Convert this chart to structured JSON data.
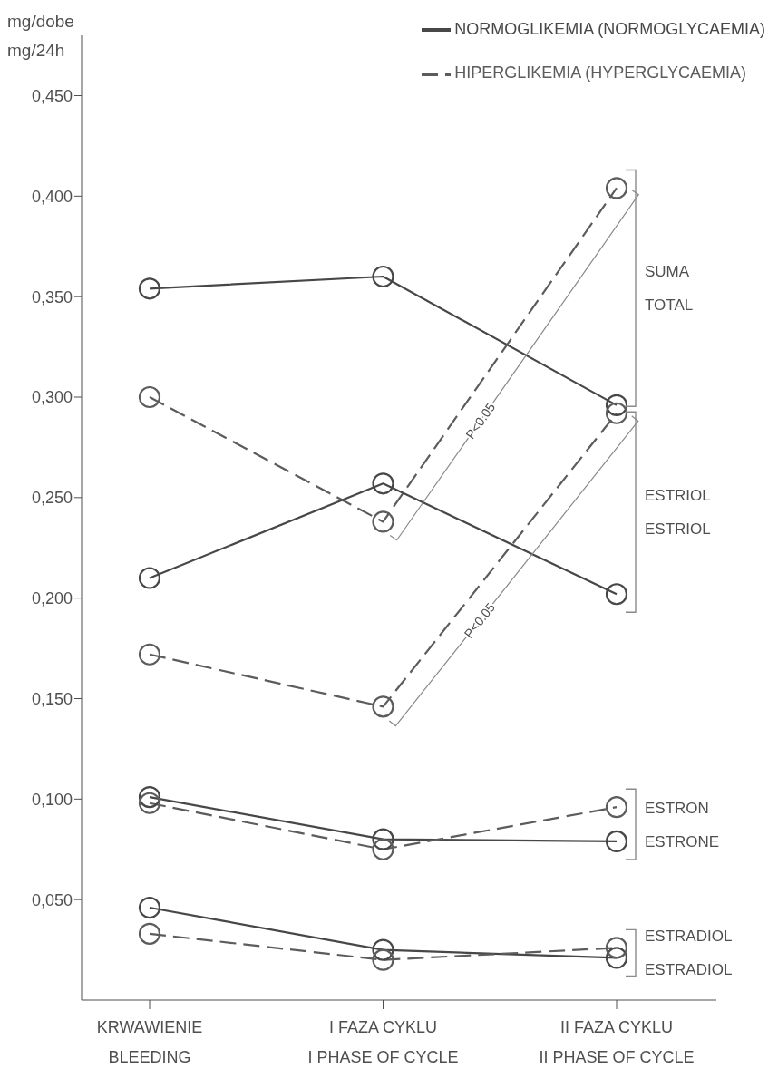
{
  "chart_data": {
    "type": "line",
    "categories": [
      "KRWAWIENIE\nBLEEDING",
      "I FAZA CYKLU\nI PHASE OF CYCLE",
      "II FAZA CYKLU\nII PHASE OF CYCLE"
    ],
    "ylabel": "mg/dobe\nmg/24h",
    "ylim": [
      0,
      0.48
    ],
    "yticks": [
      {
        "value": 0.05,
        "label": "0,050"
      },
      {
        "value": 0.1,
        "label": "0,100"
      },
      {
        "value": 0.15,
        "label": "0,150"
      },
      {
        "value": 0.2,
        "label": "0,200"
      },
      {
        "value": 0.25,
        "label": "0,250"
      },
      {
        "value": 0.3,
        "label": "0,300"
      },
      {
        "value": 0.35,
        "label": "0,350"
      },
      {
        "value": 0.4,
        "label": "0,400"
      },
      {
        "value": 0.45,
        "label": "0,450"
      }
    ],
    "series": [
      {
        "name": "NORMOGLIKEMIA (NORMOGLYCAEMIA)",
        "color": "#474747",
        "line_style": "solid",
        "values": [
          0.354,
          0.36,
          0.296
        ]
      },
      {
        "name": "HIPERGLIKEMIA (HYPERGLYCAEMIA)",
        "color": "#5c5c5c",
        "line_style": "dashed",
        "values": [
          0.3,
          0.238,
          0.404
        ]
      },
      {
        "color": "#474747",
        "line_style": "solid",
        "values": [
          0.21,
          0.257,
          0.202
        ]
      },
      {
        "color": "#5c5c5c",
        "line_style": "dashed",
        "values": [
          0.172,
          0.146,
          0.292
        ]
      },
      {
        "color": "#474747",
        "line_style": "solid",
        "values": [
          0.101,
          0.08,
          0.079
        ]
      },
      {
        "color": "#5c5c5c",
        "line_style": "dashed",
        "values": [
          0.098,
          0.075,
          0.096
        ]
      },
      {
        "color": "#474747",
        "line_style": "solid",
        "values": [
          0.046,
          0.025,
          0.021
        ]
      },
      {
        "color": "#5c5c5c",
        "line_style": "dashed",
        "values": [
          0.033,
          0.02,
          0.026
        ]
      }
    ],
    "marker": "circle",
    "legend": "top right",
    "annotations": [
      "SUMA\nTOTAL",
      "ESTRIOL\nESTRIOL",
      "ESTRON\nESTRONE",
      "ESTRADIOL\nESTRADIOL",
      "P<0.05",
      "P<0.05"
    ]
  }
}
